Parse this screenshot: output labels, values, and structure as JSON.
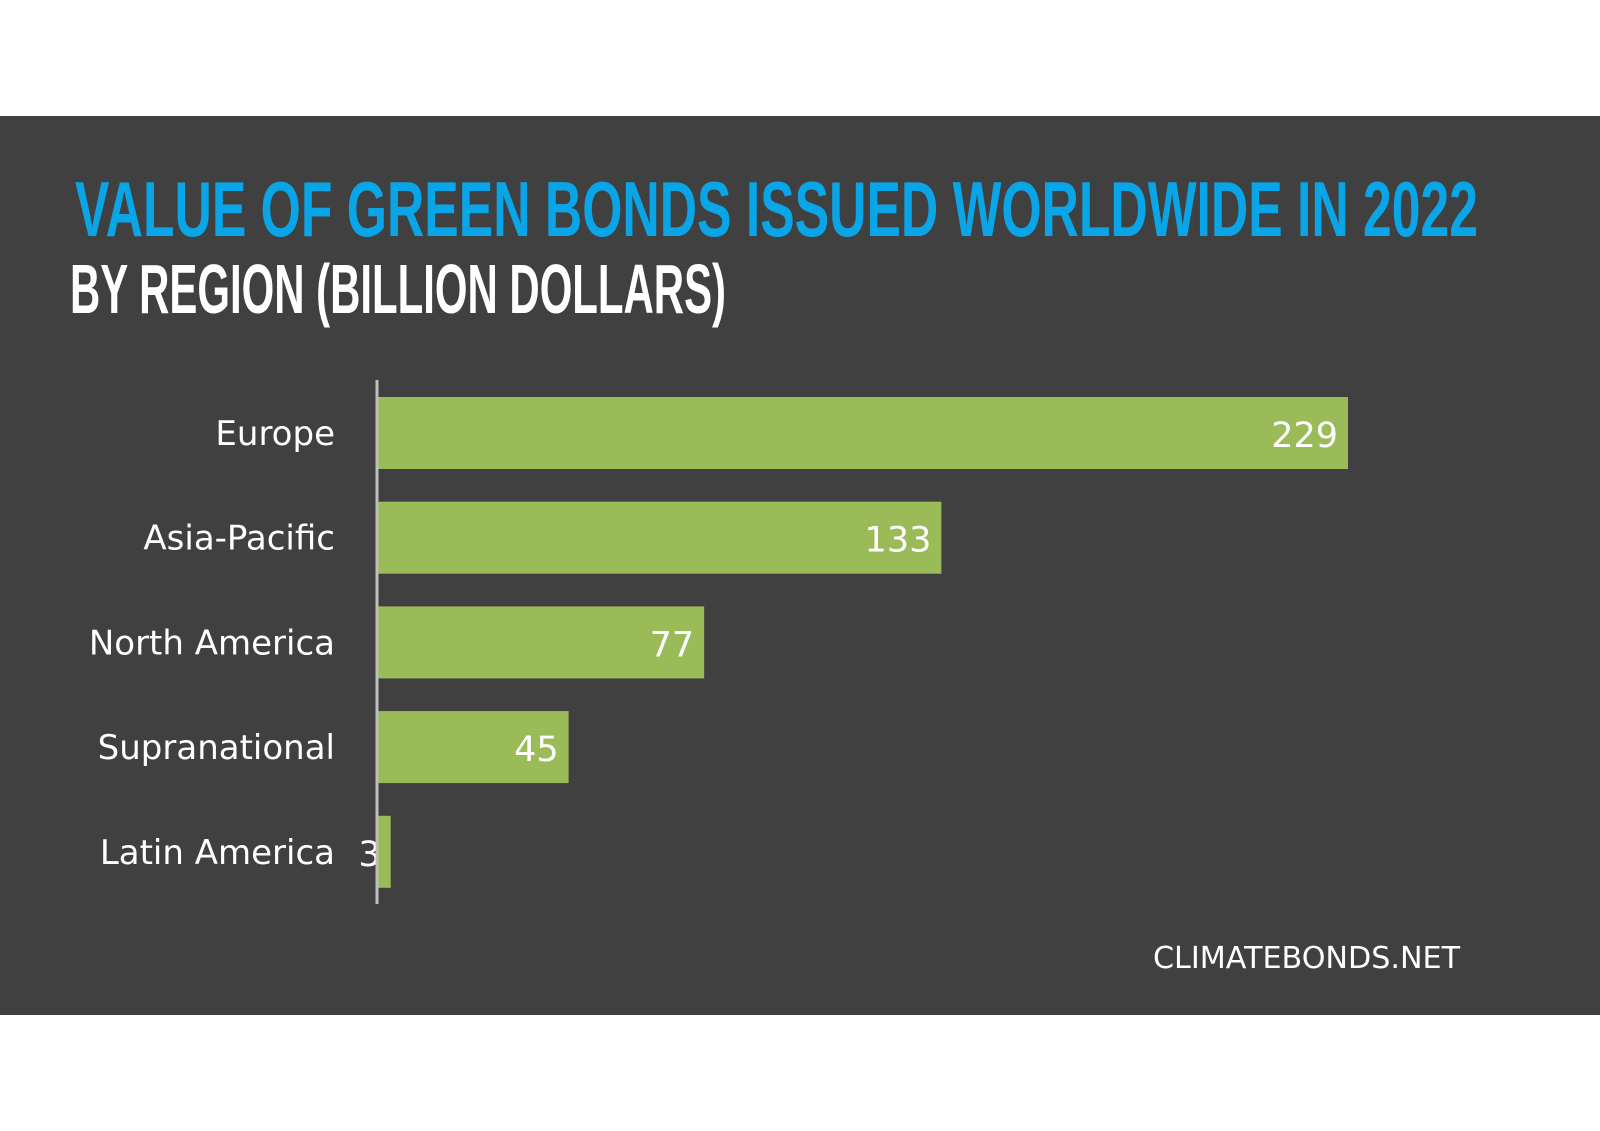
{
  "colors": {
    "background": "#404040",
    "title": "#0aa5e6",
    "bar": "#9bbb59",
    "text": "#ffffff",
    "axis": "#bfbfbf"
  },
  "chart_data": {
    "type": "bar",
    "orientation": "horizontal",
    "title": "VALUE OF GREEN BONDS ISSUED WORLDWIDE IN 2022",
    "subtitle": "BY REGION (BILLION DOLLARS)",
    "categories": [
      "Europe",
      "Asia-Pacific",
      "North America",
      "Supranational",
      "Latin America"
    ],
    "values": [
      229,
      133,
      77,
      45,
      3
    ],
    "data_labels": [
      "229",
      "133",
      "77",
      "45",
      "3"
    ],
    "xlabel": "",
    "ylabel": "",
    "xlim": [
      0,
      229
    ],
    "grid": false,
    "legend": "none"
  },
  "source": "CLIMATEBONDS.NET"
}
